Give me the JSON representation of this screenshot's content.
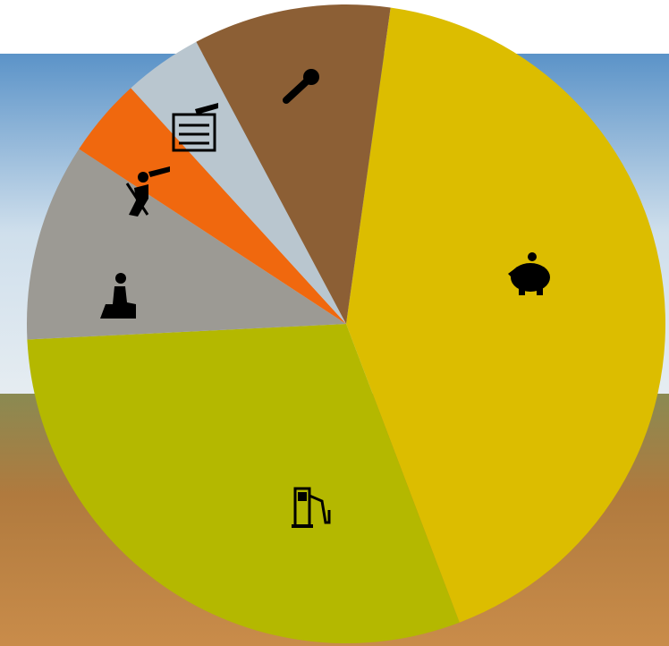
{
  "chart_data": {
    "type": "pie",
    "categories": [
      null,
      null,
      null,
      null,
      null,
      null
    ],
    "values": [
      42,
      30,
      10,
      4,
      4,
      10
    ],
    "colors": [
      "#dcbd00",
      "#b4b800",
      "#9c9a94",
      "#f0680e",
      "#b9c6cf",
      "#8c5f35"
    ]
  }
}
